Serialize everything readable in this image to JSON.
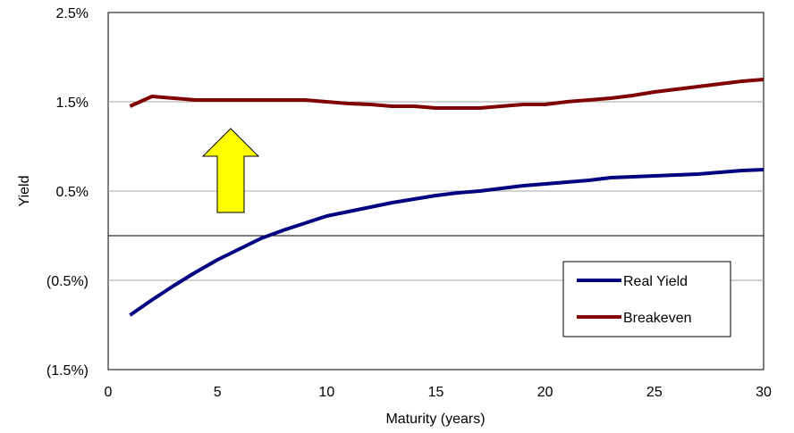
{
  "chart_data": {
    "type": "line",
    "title": "",
    "xlabel": "Maturity (years)",
    "ylabel": "Yield",
    "xlim": [
      0,
      30
    ],
    "ylim": [
      -1.5,
      2.5
    ],
    "x_ticks": [
      0,
      5,
      10,
      15,
      20,
      25,
      30
    ],
    "x_tick_labels": [
      "0",
      "5",
      "10",
      "15",
      "20",
      "25",
      "30"
    ],
    "y_ticks": [
      2.5,
      1.5,
      0.5,
      -0.5,
      -1.5
    ],
    "y_tick_labels": [
      "2.5%",
      "1.5%",
      "0.5%",
      "(0.5%)",
      "(1.5%)"
    ],
    "y_tick_colors": [
      "#000000",
      "#000000",
      "#000000",
      "#ff0000",
      "#ff0000"
    ],
    "gridlines_y": [
      1.5,
      0.5,
      -0.5
    ],
    "zero_line": 0,
    "legend_position": "bottom-right",
    "annotation": "yellow-up-arrow",
    "x": [
      1,
      2,
      3,
      4,
      5,
      6,
      7,
      8,
      9,
      10,
      11,
      12,
      13,
      14,
      15,
      16,
      17,
      18,
      19,
      20,
      21,
      22,
      23,
      24,
      25,
      26,
      27,
      28,
      29,
      30
    ],
    "series": [
      {
        "name": "Real Yield",
        "color": "#000080",
        "values": [
          -0.89,
          -0.72,
          -0.56,
          -0.41,
          -0.27,
          -0.15,
          -0.03,
          0.06,
          0.14,
          0.22,
          0.27,
          0.32,
          0.37,
          0.41,
          0.45,
          0.48,
          0.5,
          0.53,
          0.56,
          0.58,
          0.6,
          0.62,
          0.65,
          0.66,
          0.67,
          0.68,
          0.69,
          0.71,
          0.73,
          0.74
        ]
      },
      {
        "name": "Breakeven",
        "color": "#800000",
        "values": [
          1.45,
          1.56,
          1.54,
          1.52,
          1.52,
          1.52,
          1.52,
          1.52,
          1.52,
          1.5,
          1.48,
          1.47,
          1.45,
          1.45,
          1.43,
          1.43,
          1.43,
          1.45,
          1.47,
          1.47,
          1.5,
          1.52,
          1.54,
          1.57,
          1.61,
          1.64,
          1.67,
          1.7,
          1.73,
          1.75
        ]
      }
    ]
  }
}
